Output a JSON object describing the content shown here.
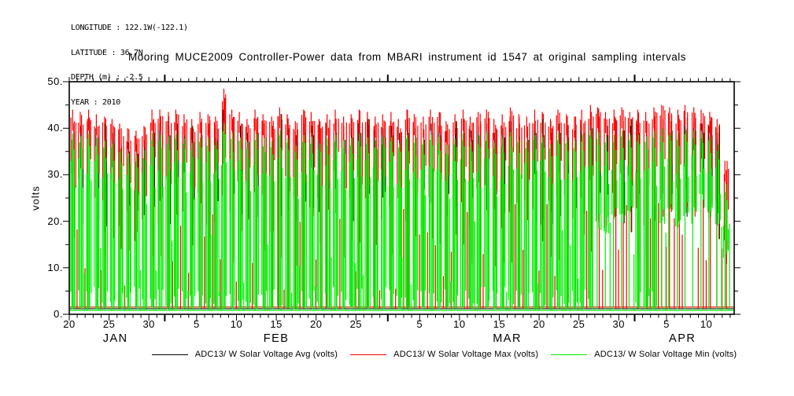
{
  "header": {
    "lines": [
      "LONGITUDE : 122.1W(-122.1)",
      "LATITUDE : 36.7N",
      "DEPTH (m) : -2.5",
      "YEAR : 2010"
    ]
  },
  "title": "Mooring MUCE2009 Controller-Power data from MBARI instrument id 1547 at original sampling intervals",
  "legend": {
    "items": [
      {
        "label": "ADC13/ W Solar Voltage Avg (volts)",
        "color": "#000000"
      },
      {
        "label": "ADC13/ W Solar Voltage Max (volts)",
        "color": "#ff0000"
      },
      {
        "label": "ADC13/ W Solar Voltage Min (volts)",
        "color": "#00ee00"
      }
    ]
  },
  "chart_data": {
    "type": "line",
    "title": "Mooring MUCE2009 Controller-Power data from MBARI instrument id 1547 at original sampling intervals",
    "xlabel": "",
    "ylabel": "volts",
    "ylim": [
      0,
      50
    ],
    "grid": false,
    "legend_position": "bottom",
    "y_tick_labels": [
      "0.",
      "10.",
      "20.",
      "30.",
      "40.",
      "50."
    ],
    "y_minor_step": 5,
    "x_start_date": "2010-01-20",
    "x_end_date": "2010-04-12",
    "x_tick_step_days": 1,
    "x_label_offsets": [
      0,
      5,
      10,
      16,
      21,
      26,
      31,
      36,
      44,
      49,
      54,
      59,
      64,
      69,
      75,
      80
    ],
    "x_label_texts": [
      "20",
      "25",
      "30",
      "5",
      "10",
      "15",
      "20",
      "25",
      "5",
      "10",
      "15",
      "20",
      "25",
      "30",
      "5",
      "10"
    ],
    "month_labels": [
      {
        "text": "JAN",
        "day_center": 5.8
      },
      {
        "text": "FEB",
        "day_center": 26
      },
      {
        "text": "MAR",
        "day_center": 55
      },
      {
        "text": "APR",
        "day_center": 77
      }
    ],
    "month_start_offsets": [
      12,
      40,
      71
    ],
    "series": [
      {
        "name": "ADC13/ W Solar Voltage Avg (volts)",
        "color": "#000000"
      },
      {
        "name": "ADC13/ W Solar Voltage Max (volts)",
        "color": "#ff0000"
      },
      {
        "name": "ADC13/ W Solar Voltage Min (volts)",
        "color": "#00ee00"
      }
    ],
    "colors": {
      "overlap_dark": "#7b1a00",
      "frame": "#000000"
    },
    "night_baseline_volts": 1.2,
    "daily": {
      "values_are_estimates": true,
      "max": [
        44,
        43.5,
        44,
        43,
        42.5,
        42,
        41,
        40,
        39.5,
        40.5,
        44,
        44,
        43.5,
        44,
        43,
        42,
        43.5,
        43,
        42.5,
        48.5,
        44,
        43.5,
        42,
        44,
        43,
        42.5,
        44.5,
        43,
        41.5,
        44,
        43.5,
        42,
        43,
        44,
        42.5,
        43,
        44,
        43.5,
        42.5,
        43,
        43.5,
        42,
        44,
        43,
        42.5,
        44,
        43.5,
        41.5,
        43,
        44,
        42.5,
        43.5,
        44,
        42,
        43,
        44.5,
        43,
        42.5,
        44,
        43.5,
        42,
        44,
        43,
        42.5,
        44,
        45,
        44.5,
        43.5,
        44,
        44.5,
        43.5,
        44,
        43.5,
        44.5,
        45,
        44.5,
        44,
        45,
        44.5,
        44,
        43.5,
        42,
        33
      ],
      "avg_peak": [
        41,
        40.5,
        41,
        40,
        39.5,
        39,
        38,
        37,
        36.5,
        37.5,
        41,
        41,
        40.5,
        41,
        40,
        39,
        40.5,
        40,
        39.5,
        44,
        41,
        40.5,
        39,
        41,
        40,
        39.5,
        41.5,
        40,
        38.5,
        41,
        40.5,
        39,
        40,
        41,
        39.5,
        40,
        41,
        40.5,
        39.5,
        40,
        40.5,
        39,
        41,
        40,
        39.5,
        41,
        40.5,
        38.5,
        40,
        41,
        39.5,
        40.5,
        41,
        39,
        40,
        41.5,
        40,
        39.5,
        41,
        40.5,
        39,
        41,
        40,
        39.5,
        41,
        42,
        41.5,
        40.5,
        41,
        41.5,
        40.5,
        41,
        40.5,
        41.5,
        42,
        41.5,
        41,
        42,
        41.5,
        41,
        40.5,
        39,
        29
      ],
      "min_peak": [
        39,
        38.5,
        39,
        38,
        37.5,
        37,
        36,
        35,
        34.5,
        35.5,
        39,
        39,
        38.5,
        39,
        38,
        37,
        38.5,
        38,
        37.5,
        41,
        39,
        38.5,
        37,
        39,
        38,
        37.5,
        39.5,
        38,
        36.5,
        39,
        38.5,
        37,
        38,
        39,
        37.5,
        38,
        39,
        38.5,
        37.5,
        38,
        38.5,
        37,
        39,
        38,
        37.5,
        39,
        38.5,
        36.5,
        38,
        39,
        37.5,
        38.5,
        39,
        37,
        38,
        39.5,
        38,
        37.5,
        39,
        38.5,
        37,
        39,
        38,
        37.5,
        39,
        40,
        39.5,
        38.5,
        39,
        39.5,
        38.5,
        39,
        38.5,
        39.5,
        40,
        39.5,
        39,
        40,
        39.5,
        39,
        38.5,
        37,
        28
      ],
      "day_min": [
        1,
        1,
        1,
        1,
        1,
        1,
        1,
        1,
        1,
        1,
        1,
        1,
        1,
        1,
        1,
        1,
        1,
        1,
        1,
        1,
        1,
        1,
        1,
        1,
        1,
        1,
        1,
        1,
        1,
        1,
        1,
        1,
        1,
        1,
        1,
        1,
        1,
        1,
        1,
        1,
        1,
        1,
        1,
        1,
        1,
        1,
        1,
        1,
        1,
        1,
        1,
        1,
        1,
        1,
        1,
        1,
        1,
        1,
        1,
        1,
        1,
        1,
        1,
        1,
        1,
        1,
        20,
        19,
        21,
        20,
        22,
        1,
        1,
        1,
        21,
        22,
        20,
        23,
        21,
        24,
        22,
        20,
        14
      ]
    }
  }
}
